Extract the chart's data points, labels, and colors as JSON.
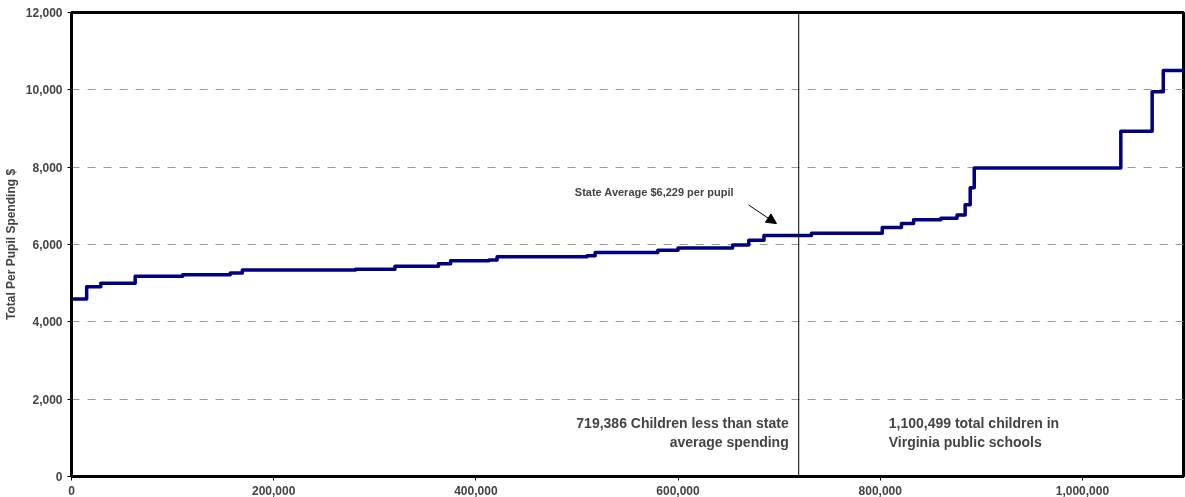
{
  "chart_data": {
    "type": "step",
    "ylabel": "Total Per Pupil Spending $",
    "x": [
      0,
      15000,
      29000,
      63000,
      110000,
      157000,
      169000,
      281000,
      320000,
      363000,
      375000,
      413000,
      421000,
      510000,
      518000,
      580000,
      600000,
      654000,
      670000,
      685000,
      732000,
      802000,
      821000,
      833000,
      860000,
      876000,
      884000,
      889000,
      893000,
      1038000,
      1069000,
      1080000,
      1100000
    ],
    "series": [
      {
        "color": "#000080",
        "values": [
          4590,
          4910,
          5000,
          5180,
          5220,
          5260,
          5340,
          5360,
          5440,
          5500,
          5580,
          5600,
          5680,
          5710,
          5790,
          5850,
          5910,
          5990,
          6110,
          6230,
          6290,
          6440,
          6540,
          6640,
          6680,
          6760,
          7030,
          7470,
          7980,
          8930,
          9950,
          10500,
          10500
        ]
      }
    ],
    "xlim": [
      0,
      1100000
    ],
    "xticks": [
      {
        "value": 0,
        "label": "0"
      },
      {
        "value": 200000,
        "label": "200,000"
      },
      {
        "value": 400000,
        "label": "400,000"
      },
      {
        "value": 600000,
        "label": "600,000"
      },
      {
        "value": 800000,
        "label": "800,000"
      },
      {
        "value": 1000000,
        "label": "1,000,000"
      }
    ],
    "ylim": [
      0,
      12000
    ],
    "yticks": [
      {
        "value": 0,
        "label": "0"
      },
      {
        "value": 2000,
        "label": "2,000"
      },
      {
        "value": 4000,
        "label": "4,000"
      },
      {
        "value": 6000,
        "label": "6,000"
      },
      {
        "value": 8000,
        "label": "8,000"
      },
      {
        "value": 10000,
        "label": "10,000"
      },
      {
        "value": 12000,
        "label": "12,000"
      }
    ],
    "grid": "y",
    "line_style": "solid",
    "marker": "none",
    "ref_lines": [
      {
        "axis": "x",
        "value": 719386,
        "color": "#000000"
      }
    ],
    "annotations": [
      "State Average    $6,229 per pupil",
      "719,386 Children less than state\naverage spending",
      "1,100,499  total children in\nVirginia public schools"
    ]
  }
}
